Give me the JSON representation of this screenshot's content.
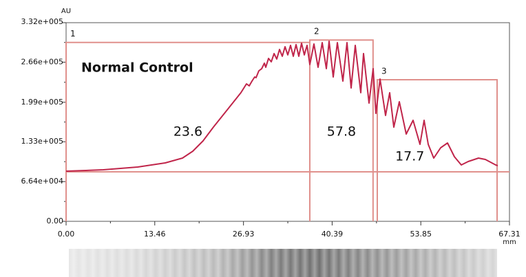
{
  "chart_data": {
    "type": "line",
    "ylabel": "AU",
    "xlabel": "mm",
    "annotation": "Normal Control",
    "xlim": [
      0,
      67.31
    ],
    "ylim": [
      0,
      332000
    ],
    "xticks": [
      {
        "value": 0,
        "label": "0.00"
      },
      13.46,
      26.93,
      40.39,
      53.85,
      67.31
    ],
    "yticks": [
      {
        "value": 0,
        "label": "0.00"
      },
      {
        "value": 66400,
        "label": "6.64e+004"
      },
      {
        "value": 133000,
        "label": "1.33e+005"
      },
      {
        "value": 199000,
        "label": "1.99e+005"
      },
      {
        "value": 266000,
        "label": "2.66e+005"
      },
      {
        "value": 332000,
        "label": "3.32e+005"
      }
    ],
    "baseline": 82700,
    "box_color": "#e0908c",
    "peaks": [
      {
        "label": "1",
        "value": 23.6,
        "start": 0,
        "end": 37.0,
        "top": 299000
      },
      {
        "label": "2",
        "value": 57.8,
        "start": 37.0,
        "end": 46.6,
        "top": 303000
      },
      {
        "label": "3",
        "value": 17.7,
        "start": 47.24,
        "end": 65.43,
        "top": 236700
      }
    ],
    "series": [
      {
        "color": "#c0254a",
        "x": [
          0.0,
          5.64,
          10.87,
          15.05,
          17.66,
          19.23,
          20.79,
          22.36,
          24.45,
          26.54,
          27.38,
          27.8,
          28.22,
          28.63,
          28.84,
          29.27,
          29.69,
          30.1,
          30.31,
          30.73,
          31.15,
          31.57,
          31.98,
          32.4,
          32.82,
          33.24,
          33.66,
          34.07,
          34.49,
          34.91,
          35.33,
          35.75,
          36.16,
          36.58,
          37.0,
          37.63,
          38.25,
          38.88,
          39.51,
          39.93,
          40.55,
          41.18,
          42.02,
          42.64,
          43.27,
          43.9,
          44.73,
          45.15,
          45.99,
          46.62,
          47.03,
          47.66,
          48.5,
          49.12,
          49.75,
          50.59,
          51.63,
          52.68,
          53.72,
          54.35,
          54.98,
          55.81,
          56.86,
          57.9,
          58.95,
          59.99,
          61.04,
          62.61,
          63.65,
          65.22,
          65.53
        ],
        "values": [
          83900,
          86200,
          90800,
          97700,
          105700,
          117200,
          134400,
          157400,
          186100,
          214900,
          229800,
          226400,
          234400,
          241300,
          240100,
          251600,
          255100,
          264300,
          257400,
          272300,
          266600,
          280400,
          271200,
          287300,
          275800,
          291800,
          278100,
          294100,
          275800,
          295300,
          275800,
          297600,
          278100,
          294100,
          262000,
          296400,
          257400,
          298700,
          255100,
          301000,
          241300,
          298700,
          234400,
          298700,
          222900,
          294100,
          214900,
          280400,
          197600,
          255100,
          180400,
          237800,
          176900,
          214900,
          157400,
          199900,
          145900,
          168900,
          128700,
          168900,
          128700,
          105700,
          122900,
          131000,
          108000,
          94200,
          100000,
          105700,
          103400,
          94200,
          93100
        ]
      }
    ]
  }
}
